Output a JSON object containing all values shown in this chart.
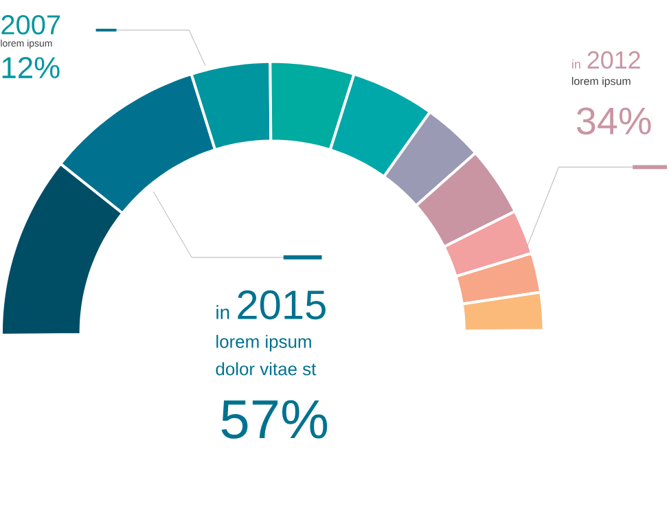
{
  "chart_data": {
    "type": "donut",
    "categories": [
      null,
      null,
      null,
      null,
      null,
      null,
      null,
      null,
      null,
      null
    ],
    "values": [
      21.7,
      18.9,
      9.4,
      10,
      10,
      7.2,
      8.3,
      5.3,
      4.7,
      4.5
    ],
    "colors": [
      "#004d66",
      "#00728f",
      "#00969f",
      "#00ab9f",
      "#00a8aa",
      "#9a9ab5",
      "#c995a3",
      "#f2a0a0",
      "#f7a688",
      "#fbb97a"
    ],
    "annotations": [
      "2007",
      "lorem ipsum",
      "12%",
      "in",
      "2012",
      "lorem ipsum",
      "34%",
      "in",
      "2015",
      "lorem ipsum",
      "dolor vitae st",
      "57%"
    ]
  }
}
